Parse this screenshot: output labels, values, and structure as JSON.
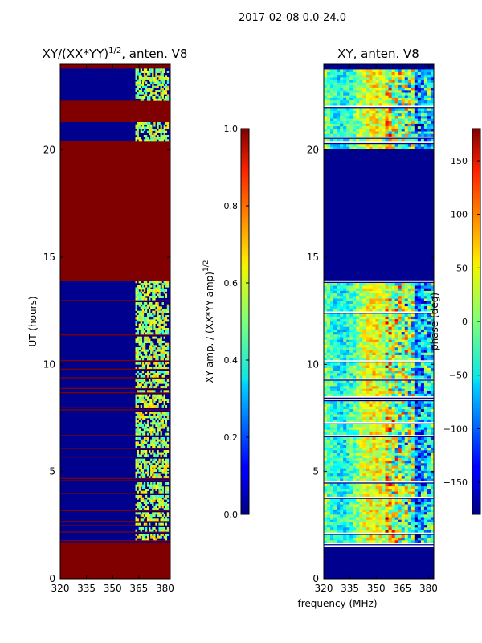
{
  "suptitle": "2017-02-08 0.0-24.0",
  "xlabel": "frequency (MHz)",
  "colors": {
    "bad_flag": "#800000",
    "background": "#00008f"
  },
  "chart_data": [
    {
      "type": "heatmap",
      "title": "XY/(XX*YY)",
      "title_exponent": "1/2",
      "title_suffix": ", anten. V8",
      "xlabel": "",
      "ylabel": "UT (hours)",
      "xlim": [
        320,
        383
      ],
      "ylim": [
        0,
        24
      ],
      "xticks": [
        "320",
        "335",
        "350",
        "365",
        "380"
      ],
      "yticks": [
        "0",
        "5",
        "10",
        "15",
        "20"
      ],
      "colormap": "jet",
      "colorbar": {
        "label": "XY amp. / (XX*YY amp)",
        "label_exponent": "1/2",
        "range": [
          0.0,
          1.0
        ],
        "ticks": [
          "0.0",
          "0.2",
          "0.4",
          "0.6",
          "0.8",
          "1.0"
        ]
      },
      "flagged_hours": [
        [
          0.0,
          1.5
        ],
        [
          2.6,
          2.8
        ],
        [
          12.4,
          12.7
        ],
        [
          13.9,
          20.4
        ],
        [
          21.3,
          22.3
        ]
      ],
      "active_band_mhz": [
        363,
        382
      ],
      "active_hours": [
        [
          1.7,
          13.9
        ],
        [
          20.4,
          21.3
        ],
        [
          22.3,
          23.8
        ]
      ]
    },
    {
      "type": "heatmap",
      "title": "XY, anten. V8",
      "xlabel": "",
      "ylabel": "",
      "xlim": [
        320,
        383
      ],
      "ylim": [
        0,
        24
      ],
      "xticks": [
        "320",
        "335",
        "350",
        "365",
        "380"
      ],
      "yticks": [
        "0",
        "5",
        "10",
        "15",
        "20"
      ],
      "colormap": "jet",
      "colorbar": {
        "label": "phase (deg)",
        "range": [
          -180,
          180
        ],
        "ticks": [
          "-150",
          "-100",
          "-50",
          "0",
          "50",
          "100",
          "150"
        ]
      },
      "empty_hours": [
        [
          0.0,
          1.5
        ],
        [
          13.9,
          20.0
        ]
      ],
      "active_hours": [
        [
          1.5,
          13.9
        ],
        [
          20.0,
          23.8
        ]
      ]
    }
  ]
}
